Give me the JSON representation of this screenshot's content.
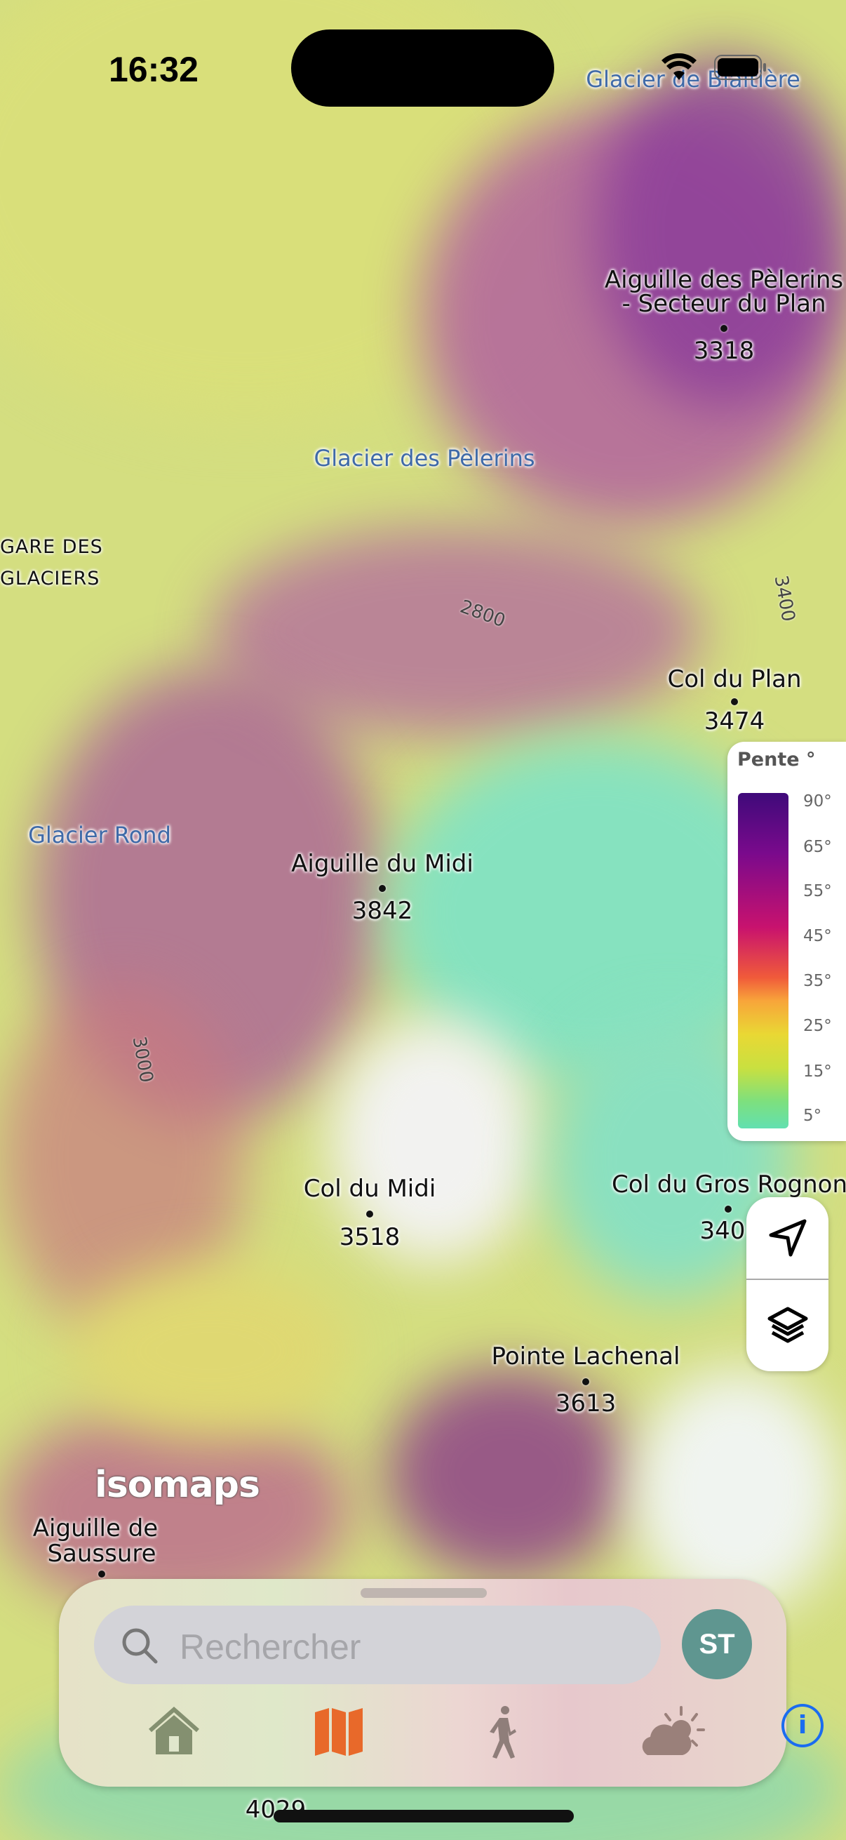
{
  "status_bar": {
    "time": "16:32",
    "wifi_icon": "wifi-icon",
    "battery_icon": "battery-icon"
  },
  "map": {
    "water_labels": [
      "Glacier de Blaitière",
      "Glacier des Pèlerins",
      "Glacier Rond"
    ],
    "area_labels": [
      "GARE DES",
      "GLACIERS"
    ],
    "peaks": [
      {
        "name": "Aiguille des Pèlerins",
        "name2": "- Secteur du Plan",
        "elevation": "3318"
      },
      {
        "name": "Col du Plan",
        "elevation": "3474"
      },
      {
        "name": "Aiguille du Midi",
        "elevation": "3842"
      },
      {
        "name": "Col du Midi",
        "elevation": "3518"
      },
      {
        "name": "Col du Gros Rognon",
        "elevation": "340"
      },
      {
        "name": "Pointe Lachenal",
        "elevation": "3613"
      },
      {
        "name": "Aiguille de",
        "name2": "Saussure",
        "elevation": ""
      },
      {
        "name": "",
        "elevation": "4029"
      }
    ],
    "contours": [
      "2800",
      "3400",
      "3000"
    ],
    "logo": "isomaps"
  },
  "legend": {
    "title": "Pente °",
    "ticks": [
      "90°",
      "65°",
      "55°",
      "45°",
      "35°",
      "25°",
      "15°",
      "5°"
    ],
    "colors": [
      "#3f0a7a",
      "#7a0a8c",
      "#c8126e",
      "#f05a3a",
      "#f8a53a",
      "#e9d834",
      "#c9e040",
      "#62e0b0"
    ]
  },
  "controls": {
    "locate_icon": "location-arrow-icon",
    "layers_icon": "layers-icon"
  },
  "panel": {
    "search_placeholder": "Rechercher",
    "avatar_initials": "ST",
    "tabs": [
      {
        "name": "home",
        "icon": "house-icon",
        "active": false
      },
      {
        "name": "map",
        "icon": "map-icon",
        "active": true
      },
      {
        "name": "hiking",
        "icon": "walking-person-icon",
        "active": false
      },
      {
        "name": "weather",
        "icon": "cloud-sun-icon",
        "active": false
      }
    ],
    "accent": "#e8692a",
    "info_label": "i"
  }
}
